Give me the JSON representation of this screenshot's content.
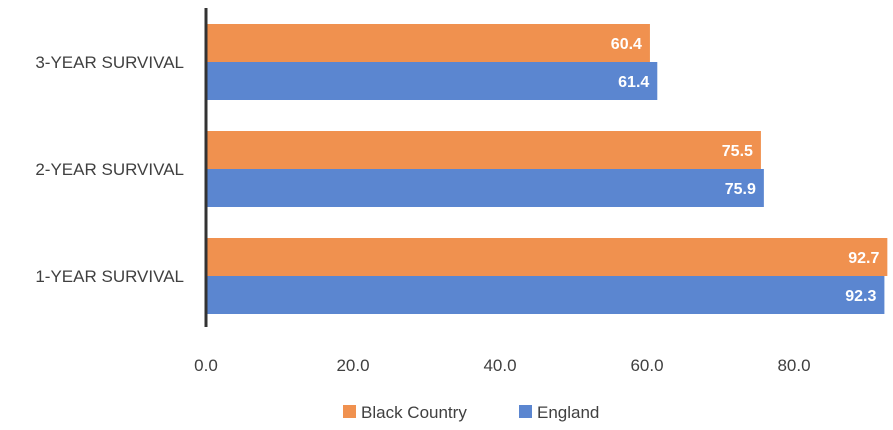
{
  "chart_data": {
    "type": "bar",
    "orientation": "horizontal",
    "title": "",
    "xlabel": "",
    "ylabel": "",
    "categories": [
      "3-YEAR SURVIVAL",
      "2-YEAR SURVIVAL",
      "1-YEAR SURVIVAL"
    ],
    "series": [
      {
        "name": "Black Country",
        "values": [
          60.4,
          75.5,
          92.7
        ],
        "color": "#f0914f"
      },
      {
        "name": "England",
        "values": [
          61.4,
          75.9,
          92.3
        ],
        "color": "#5b86d0"
      }
    ],
    "xlim": [
      0,
      90
    ],
    "x_ticks": [
      "0.0",
      "20.0",
      "40.0",
      "60.0",
      "80.0"
    ],
    "x_tick_values": [
      0,
      20,
      40,
      60,
      80
    ],
    "data_labels": [
      [
        "60.4",
        "75.5",
        "92.7"
      ],
      [
        "61.4",
        "75.9",
        "92.3"
      ]
    ],
    "grid": false,
    "legend_position": "bottom"
  }
}
